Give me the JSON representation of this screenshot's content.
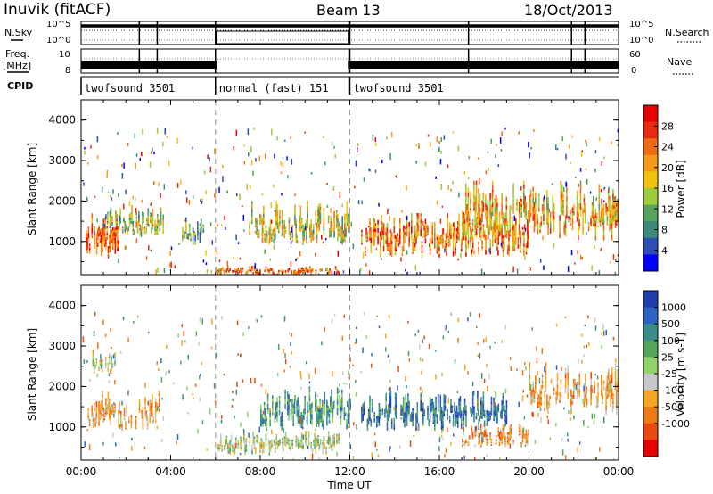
{
  "header": {
    "radar": "Inuvik (fitACF)",
    "beam": "Beam 13",
    "date": "18/Oct/2013"
  },
  "noise_panel": {
    "left_label": "N.Sky",
    "right_label": "N.Search",
    "y_ticks_left": [
      "10^5",
      "10^0"
    ],
    "y_ticks_right": [
      "10^5",
      "10^0"
    ]
  },
  "freq_panel": {
    "left_label_line1": "Freq.",
    "left_label_line2": "[MHz]",
    "y_ticks_left": [
      "10",
      "8"
    ],
    "right_label": "Nave",
    "y_ticks_right": [
      "60",
      "0"
    ]
  },
  "cpid": {
    "label": "CPID",
    "segments": [
      {
        "name": "twofsound 3501",
        "start_hour": 0,
        "end_hour": 6
      },
      {
        "name": "normal (fast) 151",
        "start_hour": 6,
        "end_hour": 12
      },
      {
        "name": "twofsound 3501",
        "start_hour": 12,
        "end_hour": 24
      }
    ]
  },
  "axes": {
    "ylabel": "Slant Range [km]",
    "xlabel": "Time UT",
    "x_ticks": [
      "00:00",
      "04:00",
      "08:00",
      "12:00",
      "16:00",
      "20:00",
      "00:00"
    ],
    "y_ticks": [
      "1000",
      "2000",
      "3000",
      "4000"
    ]
  },
  "power_colorbar": {
    "label": "Power [dB]",
    "ticks": [
      "4",
      "8",
      "12",
      "16",
      "20",
      "24",
      "28"
    ],
    "colors": [
      "#0000ff",
      "#2b4fb4",
      "#3c8a7a",
      "#56a35a",
      "#9dcc3a",
      "#f0c20e",
      "#f59a1a",
      "#ef6a14",
      "#e62c0e",
      "#e60000"
    ]
  },
  "velocity_colorbar": {
    "label": "Velocity [m s-1]",
    "ticks": [
      "1000",
      "500",
      "100",
      "25",
      "-25",
      "-100",
      "-500",
      "-1000"
    ],
    "colors": [
      "#1f3fb0",
      "#2c63c4",
      "#3a8c8c",
      "#56a35a",
      "#8fd36a",
      "#c8c8c8",
      "#f5a623",
      "#ef7a14",
      "#ea4a0e",
      "#e60000"
    ]
  },
  "chart_data": [
    {
      "type": "heatmap",
      "title": "Power",
      "xlabel": "Time UT",
      "ylabel": "Slant Range [km]",
      "xlim": [
        0,
        24
      ],
      "ylim": [
        180,
        4500
      ],
      "colorbar": {
        "label": "Power [dB]",
        "range": [
          0,
          32
        ]
      },
      "echo_regions": [
        {
          "t_start": 0.2,
          "t_end": 1.8,
          "r_start": 600,
          "r_end": 1700,
          "level_db": 24
        },
        {
          "t_start": 1.0,
          "t_end": 3.8,
          "r_start": 1100,
          "r_end": 1900,
          "level_db": 14
        },
        {
          "t_start": 4.5,
          "t_end": 5.5,
          "r_start": 900,
          "r_end": 1600,
          "level_db": 12
        },
        {
          "t_start": 6.0,
          "t_end": 11.5,
          "r_start": 180,
          "r_end": 400,
          "level_db": 24
        },
        {
          "t_start": 7.5,
          "t_end": 12.0,
          "r_start": 900,
          "r_end": 2000,
          "level_db": 16
        },
        {
          "t_start": 12.5,
          "t_end": 20.0,
          "r_start": 600,
          "r_end": 1700,
          "level_db": 22
        },
        {
          "t_start": 17.0,
          "t_end": 24.0,
          "r_start": 1000,
          "r_end": 2500,
          "level_db": 20
        }
      ]
    },
    {
      "type": "heatmap",
      "title": "Velocity",
      "xlabel": "Time UT",
      "ylabel": "Slant Range [km]",
      "xlim": [
        0,
        24
      ],
      "ylim": [
        180,
        4500
      ],
      "colorbar": {
        "label": "Velocity [m s-1]",
        "range": [
          -1000,
          1000
        ]
      },
      "echo_regions": [
        {
          "t_start": 0.3,
          "t_end": 3.5,
          "r_start": 900,
          "r_end": 1900,
          "level_ms": -300
        },
        {
          "t_start": 0.5,
          "t_end": 1.5,
          "r_start": 2300,
          "r_end": 2900,
          "level_ms": 0
        },
        {
          "t_start": 6.0,
          "t_end": 11.5,
          "r_start": 300,
          "r_end": 900,
          "level_ms": 0
        },
        {
          "t_start": 8.0,
          "t_end": 12.0,
          "r_start": 900,
          "r_end": 2000,
          "level_ms": 400
        },
        {
          "t_start": 12.5,
          "t_end": 19.0,
          "r_start": 900,
          "r_end": 1900,
          "level_ms": 600
        },
        {
          "t_start": 17.0,
          "t_end": 20.0,
          "r_start": 500,
          "r_end": 1100,
          "level_ms": -400
        },
        {
          "t_start": 20.0,
          "t_end": 24.0,
          "r_start": 1300,
          "r_end": 2600,
          "level_ms": -300
        }
      ]
    }
  ]
}
